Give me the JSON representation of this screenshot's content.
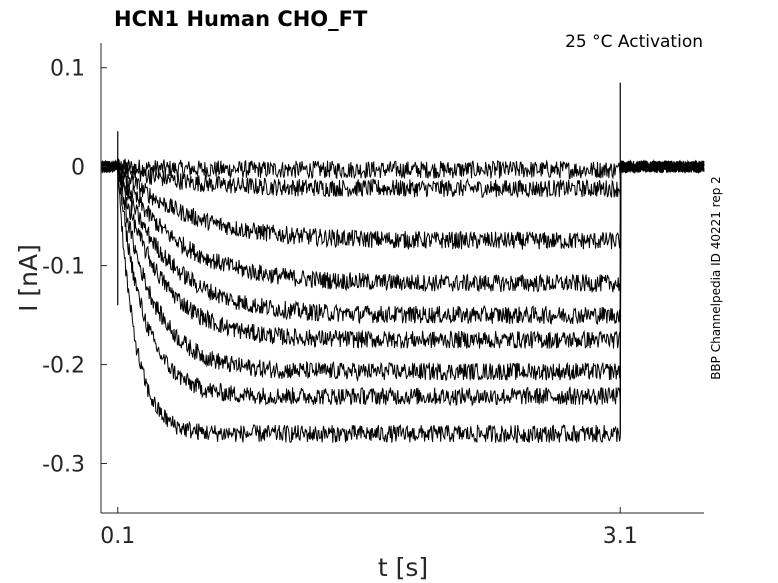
{
  "chart_data": {
    "type": "line",
    "title": "HCN1  Human  CHO_FT",
    "annotation": "25 °C  Activation",
    "side_label": "BBP Channelpedia ID 40221 rep 2",
    "xlabel": "t [s]",
    "ylabel": "I [nA]",
    "xlim": [
      0.0,
      3.6
    ],
    "ylim": [
      -0.35,
      0.125
    ],
    "x_ticks": [
      {
        "value": 0.1,
        "label": "0.1"
      },
      {
        "value": 3.1,
        "label": "3.1"
      }
    ],
    "y_ticks": [
      {
        "value": 0.1,
        "label": "0.1"
      },
      {
        "value": 0,
        "label": "0"
      },
      {
        "value": -0.1,
        "label": "-0.1"
      },
      {
        "value": -0.2,
        "label": "-0.2"
      },
      {
        "value": -0.3,
        "label": "-0.3"
      }
    ],
    "grid": false,
    "legend": "none",
    "step_start": 0.1,
    "step_end": 3.1,
    "series": [
      {
        "steady": -0.003,
        "tau": 0.3
      },
      {
        "steady": -0.022,
        "tau": 0.35
      },
      {
        "steady": -0.075,
        "tau": 0.4
      },
      {
        "steady": -0.118,
        "tau": 0.35
      },
      {
        "steady": -0.15,
        "tau": 0.3
      },
      {
        "steady": -0.175,
        "tau": 0.25
      },
      {
        "steady": -0.207,
        "tau": 0.2
      },
      {
        "steady": -0.232,
        "tau": 0.15
      },
      {
        "steady": -0.27,
        "tau": 0.1
      }
    ]
  }
}
